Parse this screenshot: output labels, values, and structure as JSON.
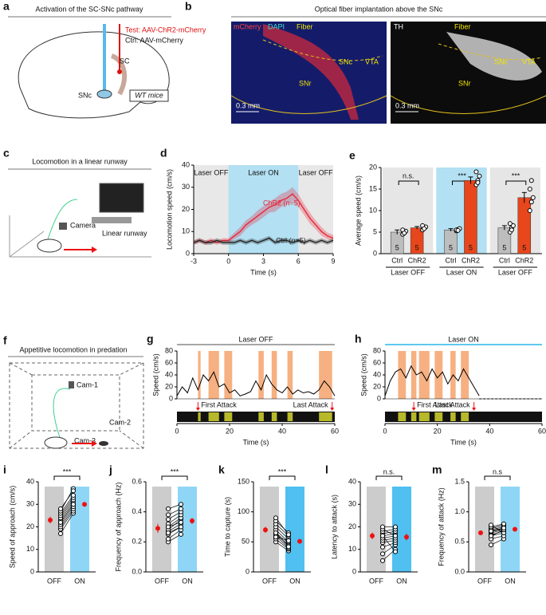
{
  "figure": {
    "a": {
      "letter": "a",
      "title": "Activation of the SC-SNc pathway",
      "test": "Test: AAV-ChR2-mCherry",
      "ctrl": "Ctrl: AAV-mCherry",
      "sc": "SC",
      "snc": "SNc",
      "mice": "WT mice"
    },
    "b": {
      "letter": "b",
      "title": "Optical fiber implantation above the SNc",
      "left": {
        "stains": [
          "mCherry",
          "DAPI",
          "Fiber"
        ],
        "regions": [
          "SNc",
          "VTA",
          "SNr"
        ],
        "scale": "0.3 mm"
      },
      "right": {
        "stain": "TH",
        "fiber": "Fiber",
        "regions": [
          "SNc",
          "VTA",
          "SNr"
        ],
        "scale": "0.3 mm"
      }
    },
    "c": {
      "letter": "c",
      "title": "Locomotion in a linear runway",
      "camera": "Camera",
      "runway": "Linear runway"
    },
    "f": {
      "letter": "f",
      "title": "Appetitive locomotion in predation",
      "cams": [
        "Cam-1",
        "Cam-2",
        "Cam-3"
      ]
    }
  },
  "chart_data": [
    {
      "type": "line",
      "panel": "d",
      "xlabel": "Time (s)",
      "ylabel": "Locomotion speed (cm/s)",
      "xlim": [
        -3,
        9
      ],
      "xticks": [
        -3,
        0,
        3,
        6,
        9
      ],
      "ylim": [
        0,
        40
      ],
      "yticks": [
        0,
        10,
        20,
        30,
        40
      ],
      "regions": [
        "Laser OFF",
        "Laser ON",
        "Laser OFF"
      ],
      "laser_on": [
        0,
        6
      ],
      "x": [
        -3,
        -2.5,
        -2,
        -1.5,
        -1,
        -0.5,
        0,
        0.5,
        1,
        1.5,
        2,
        2.5,
        3,
        3.5,
        4,
        4.5,
        5,
        5.5,
        6,
        6.5,
        7,
        7.5,
        8,
        8.5,
        9
      ],
      "series": [
        {
          "name": "ChR2 (n=5)",
          "color": "#e8283a",
          "values": [
            5,
            6,
            5,
            6,
            5,
            6,
            6,
            8,
            10,
            13,
            15,
            17,
            19,
            21,
            22,
            24,
            25,
            27,
            24,
            20,
            16,
            13,
            10,
            8,
            7
          ],
          "errors": [
            1,
            1,
            1,
            1,
            1,
            1,
            1,
            1.5,
            2,
            2,
            2,
            2.5,
            2.5,
            2.5,
            3,
            3,
            3,
            3,
            3,
            2.5,
            2.5,
            2,
            2,
            1.5,
            1.5
          ]
        },
        {
          "name": "Ctrl (n=5)",
          "color": "#222222",
          "values": [
            5,
            6,
            5,
            5,
            6,
            5,
            5,
            5,
            6,
            5,
            6,
            5,
            6,
            7,
            5,
            6,
            6,
            5,
            6,
            5,
            6,
            5,
            6,
            5,
            6
          ],
          "errors": [
            1,
            1,
            1,
            1,
            1,
            1,
            1,
            1,
            1,
            1,
            1,
            1,
            1,
            1,
            1,
            1,
            1,
            1,
            1,
            1,
            1,
            1,
            1,
            1,
            1
          ]
        }
      ]
    },
    {
      "type": "groupbar",
      "panel": "e",
      "ylabel": "Average speed (cm/s)",
      "ylim": [
        0,
        20
      ],
      "yticks": [
        0,
        5,
        10,
        15,
        20
      ],
      "categories": [
        "Ctrl",
        "ChR2",
        "Ctrl",
        "ChR2",
        "Ctrl",
        "ChR2"
      ],
      "groups": [
        "Laser OFF",
        "Laser ON",
        "Laser OFF"
      ],
      "group_colors": [
        "#e6e6e6",
        "#b3e0f2",
        "#e6e6e6"
      ],
      "significance": [
        "n.s.",
        "***",
        "***"
      ],
      "colors": [
        "#bdbdbd",
        "#e8461c",
        "#bdbdbd",
        "#e8461c",
        "#bdbdbd",
        "#e8461c"
      ],
      "values": [
        5,
        6,
        5.5,
        17,
        6,
        13
      ],
      "errors": [
        0.5,
        0.3,
        0.3,
        0.8,
        0.5,
        1.2
      ],
      "n": [
        5,
        5,
        5,
        5,
        5,
        5
      ],
      "points": [
        [
          4.5,
          5,
          5.2,
          5.5,
          4.8
        ],
        [
          5.5,
          6,
          6.2,
          6.5,
          5.8
        ],
        [
          5.3,
          5.6,
          5.8,
          5.5,
          5.4
        ],
        [
          16,
          17,
          18,
          19,
          16.5
        ],
        [
          5,
          6,
          6.5,
          7,
          5.5
        ],
        [
          10,
          12,
          13,
          15,
          17
        ]
      ]
    },
    {
      "type": "trace",
      "panel": "g",
      "title": "Laser OFF",
      "laser_color": "#888888",
      "xlabel": "Time (s)",
      "ylabel": "Speed (cm/s)",
      "xlim": [
        0,
        60
      ],
      "xticks": [
        0,
        20,
        40,
        60
      ],
      "ylim": [
        0,
        80
      ],
      "yticks": [
        0,
        20,
        40,
        60,
        80
      ],
      "x": [
        0,
        2,
        4,
        6,
        8,
        10,
        12,
        14,
        16,
        18,
        20,
        22,
        24,
        26,
        28,
        30,
        32,
        34,
        36,
        38,
        40,
        42,
        44,
        46,
        48,
        50,
        52,
        54,
        56,
        58,
        60
      ],
      "values": [
        5,
        20,
        10,
        35,
        15,
        40,
        30,
        45,
        20,
        25,
        10,
        15,
        5,
        8,
        12,
        30,
        15,
        40,
        25,
        15,
        10,
        20,
        8,
        15,
        10,
        12,
        8,
        15,
        30,
        20,
        5
      ],
      "attacks": [
        [
          8,
          9
        ],
        [
          12,
          16
        ],
        [
          18,
          21
        ],
        [
          31,
          33
        ],
        [
          36,
          38
        ],
        [
          42,
          44
        ],
        [
          54,
          59
        ]
      ],
      "first_attack": 8,
      "last_attack": 59,
      "annotations": [
        "First Attack",
        "Last Attack"
      ]
    },
    {
      "type": "trace",
      "panel": "h",
      "title": "Laser ON",
      "laser_color": "#29b6e8",
      "xlabel": "Time (s)",
      "ylabel": "Speed (cm/s)",
      "xlim": [
        0,
        60
      ],
      "xticks": [
        0,
        20,
        40,
        60
      ],
      "ylim": [
        0,
        80
      ],
      "yticks": [
        0,
        20,
        40,
        60,
        80
      ],
      "x": [
        0,
        2,
        4,
        6,
        8,
        10,
        12,
        14,
        16,
        18,
        20,
        22,
        24,
        26,
        28,
        30,
        32,
        34,
        36,
        38,
        40,
        42,
        44,
        46,
        48,
        50,
        52,
        54,
        56,
        58,
        60
      ],
      "values": [
        5,
        30,
        45,
        50,
        35,
        55,
        40,
        45,
        30,
        50,
        35,
        45,
        25,
        40,
        30,
        50,
        35,
        20,
        5,
        null,
        null,
        null,
        null,
        null,
        null,
        null,
        null,
        null,
        null,
        null,
        null
      ],
      "attacks": [
        [
          5,
          8
        ],
        [
          10,
          12
        ],
        [
          13,
          17
        ],
        [
          19,
          22
        ],
        [
          25,
          27
        ],
        [
          29,
          32
        ]
      ],
      "first_attack": 11,
      "last_attack": 34,
      "annotations": [
        "First Attack",
        "Last Attack"
      ]
    },
    {
      "type": "paired",
      "panel": "i",
      "ylabel": "Speed of approach (cm/s)",
      "ylim": [
        0,
        40
      ],
      "yticks": [
        0,
        10,
        20,
        30,
        40
      ],
      "significance": "***",
      "mean": [
        23,
        30
      ],
      "sem": [
        1.5,
        1
      ],
      "series": [
        {
          "name": "OFF",
          "color": "#cccccc",
          "values": [
            17,
            19,
            20,
            21,
            22,
            23,
            24,
            25,
            26,
            27,
            28,
            22
          ]
        },
        {
          "name": "ON",
          "color": "#8fd6f6",
          "values": [
            26,
            27,
            28,
            29,
            30,
            31,
            32,
            33,
            34,
            37,
            36,
            30
          ]
        }
      ]
    },
    {
      "type": "paired",
      "panel": "j",
      "ylabel": "Frequency of approach (Hz)",
      "ylim": [
        0,
        0.6
      ],
      "yticks": [
        {
          "value": 0,
          "label": "0.0"
        },
        0.2,
        0.4,
        0.6
      ],
      "significance": "***",
      "mean": [
        0.29,
        0.34
      ],
      "sem": [
        0.03,
        0.02
      ],
      "series": [
        {
          "name": "OFF",
          "color": "#cccccc",
          "values": [
            0.2,
            0.22,
            0.25,
            0.27,
            0.28,
            0.3,
            0.32,
            0.35,
            0.38,
            0.42,
            0.26,
            0.3
          ]
        },
        {
          "name": "ON",
          "color": "#8fd6f6",
          "values": [
            0.25,
            0.28,
            0.3,
            0.32,
            0.35,
            0.36,
            0.38,
            0.4,
            0.42,
            0.45,
            0.3,
            0.33
          ]
        }
      ]
    },
    {
      "type": "paired",
      "panel": "k",
      "ylabel": "Time to capture (s)",
      "ylim": [
        0,
        150
      ],
      "yticks": [
        0,
        50,
        100,
        150
      ],
      "significance": "***",
      "mean": [
        70,
        51
      ],
      "sem": [
        5,
        4
      ],
      "series": [
        {
          "name": "OFF",
          "color": "#cccccc",
          "values": [
            50,
            55,
            60,
            62,
            65,
            70,
            75,
            80,
            85,
            90,
            65,
            58
          ]
        },
        {
          "name": "ON",
          "color": "#4fc0f0",
          "values": [
            35,
            38,
            40,
            45,
            48,
            50,
            55,
            60,
            65,
            62,
            42,
            52
          ]
        }
      ]
    },
    {
      "type": "paired",
      "panel": "l",
      "ylabel": "Latency to attack (s)",
      "ylim": [
        0,
        40
      ],
      "yticks": [
        0,
        10,
        20,
        30,
        40
      ],
      "significance": "n.s.",
      "mean": [
        16,
        15.5
      ],
      "sem": [
        1.5,
        1.5
      ],
      "series": [
        {
          "name": "OFF",
          "color": "#cccccc",
          "values": [
            5,
            8,
            11,
            13,
            14,
            15,
            16,
            17,
            18,
            19,
            20,
            16
          ]
        },
        {
          "name": "ON",
          "color": "#4fc0f0",
          "values": [
            10,
            12,
            13,
            14,
            15,
            16,
            17,
            18,
            19,
            16,
            20,
            9
          ]
        }
      ]
    },
    {
      "type": "paired",
      "panel": "m",
      "ylabel": "Frequency of attack (Hz)",
      "ylim": [
        0,
        1.5
      ],
      "yticks": [
        {
          "value": 0,
          "label": "0.0"
        },
        0.5,
        {
          "value": 1,
          "label": "1.0"
        },
        1.5
      ],
      "significance": "n.s",
      "mean": [
        0.65,
        0.71
      ],
      "sem": [
        0.03,
        0.03
      ],
      "series": [
        {
          "name": "OFF",
          "color": "#cccccc",
          "values": [
            0.45,
            0.55,
            0.6,
            0.62,
            0.65,
            0.67,
            0.7,
            0.72,
            0.75,
            0.78,
            0.6,
            0.68
          ]
        },
        {
          "name": "ON",
          "color": "#8fd6f6",
          "values": [
            0.55,
            0.6,
            0.65,
            0.68,
            0.7,
            0.72,
            0.75,
            0.78,
            0.8,
            0.65,
            0.7,
            0.73
          ]
        }
      ]
    }
  ]
}
